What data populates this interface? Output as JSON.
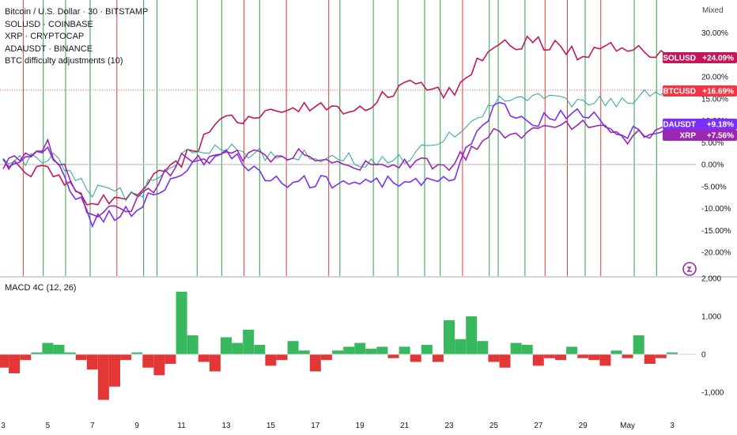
{
  "legend": {
    "main": "Bitcoin / U.S. Dollar · 30 · BITSTAMP",
    "sol": "SOLUSD · COINBASE",
    "xrp": "XRP · CRYPTOCAP",
    "ada": "ADAUSDT · BINANCE",
    "adjust": "BTC difficulty adjustments (10)"
  },
  "scale_mode": "Mixed",
  "macd_label": "MACD 4C (12, 26)",
  "colors": {
    "sol": "#c2185b",
    "btc_up": "#26a69a",
    "btc_down": "#ef5350",
    "ada": "#7b2ff7",
    "xrp": "#9c27b0",
    "macd_up": "#22b14c",
    "macd_down": "#e02020",
    "vline_green": "#2ea043",
    "vline_red": "#e53935",
    "btc_badge": "#f23645"
  },
  "chart_data": [
    {
      "type": "line",
      "title": "",
      "y_unit": "percent",
      "y_ticks": [
        "30.00%",
        "25.00%",
        "20.00%",
        "15.00%",
        "10.00%",
        "5.00%",
        "0.00%",
        "-5.00%",
        "-10.00%",
        "-15.00%",
        "-20.00%"
      ],
      "ylim": [
        -24,
        32
      ],
      "x_ticks": [
        "3",
        "5",
        "7",
        "9",
        "11",
        "13",
        "15",
        "17",
        "19",
        "21",
        "23",
        "25",
        "27",
        "29",
        "May",
        "3"
      ],
      "x": [
        0,
        2,
        4,
        6,
        8,
        10,
        12,
        14,
        16,
        18,
        20,
        22,
        24,
        26,
        28,
        30
      ],
      "series": [
        {
          "name": "SOLUSD",
          "label": "SOLUSD",
          "last": "+24.09%",
          "values": [
            0,
            -2,
            -9,
            -6,
            1,
            10,
            12,
            13,
            12,
            18,
            16,
            27,
            28,
            25,
            27,
            24
          ]
        },
        {
          "name": "BTCUSD",
          "label": "BTCUSD",
          "last": "+16.69%",
          "values": [
            0,
            2,
            -6,
            -7,
            2,
            4,
            2,
            2,
            1,
            1,
            6,
            14,
            15,
            14,
            15,
            17
          ]
        },
        {
          "name": "ADAUSDT",
          "label": "ADAUSDT",
          "last": "+9.18%",
          "values": [
            0,
            3,
            -13,
            -10,
            -2,
            3,
            -4,
            -4,
            -4,
            -4,
            -4,
            13,
            10,
            12,
            7,
            9
          ]
        },
        {
          "name": "XRP",
          "label": "XRP",
          "last": "+7.56%",
          "values": [
            0,
            5,
            -12,
            -9,
            1,
            2,
            2,
            2,
            0,
            0,
            0,
            7,
            7,
            10,
            6,
            8
          ]
        }
      ],
      "vertical_markers": [
        {
          "x": 0.9,
          "color": "red"
        },
        {
          "x": 1.8,
          "color": "green"
        },
        {
          "x": 2.8,
          "color": "green"
        },
        {
          "x": 3.9,
          "color": "green"
        },
        {
          "x": 5.1,
          "color": "red"
        },
        {
          "x": 6.3,
          "color": "green"
        },
        {
          "x": 6.9,
          "color": "green"
        },
        {
          "x": 8.7,
          "color": "green"
        },
        {
          "x": 9.8,
          "color": "green"
        },
        {
          "x": 10.8,
          "color": "red"
        },
        {
          "x": 11.5,
          "color": "green"
        },
        {
          "x": 12.7,
          "color": "red"
        },
        {
          "x": 14.6,
          "color": "red"
        },
        {
          "x": 15.1,
          "color": "green"
        },
        {
          "x": 16.6,
          "color": "green"
        },
        {
          "x": 17.7,
          "color": "green"
        },
        {
          "x": 18.9,
          "color": "green"
        },
        {
          "x": 19.6,
          "color": "green"
        },
        {
          "x": 20.6,
          "color": "red"
        },
        {
          "x": 21.8,
          "color": "green"
        },
        {
          "x": 22.2,
          "color": "green"
        },
        {
          "x": 23.4,
          "color": "green"
        },
        {
          "x": 24.3,
          "color": "red"
        },
        {
          "x": 25.3,
          "color": "red"
        },
        {
          "x": 26.1,
          "color": "green"
        },
        {
          "x": 26.8,
          "color": "red"
        },
        {
          "x": 28.3,
          "color": "green"
        },
        {
          "x": 29.3,
          "color": "green"
        }
      ],
      "grid": false
    },
    {
      "type": "bar",
      "title": "MACD 4C (12, 26)",
      "y_ticks": [
        "2,000",
        "1,000",
        "0",
        "-1,000"
      ],
      "ylim": [
        -1300,
        2000
      ],
      "x": [
        0,
        0.5,
        1,
        1.5,
        2,
        2.5,
        3,
        3.5,
        4,
        4.5,
        5,
        5.5,
        6,
        6.5,
        7,
        7.5,
        8,
        8.5,
        9,
        9.5,
        10,
        10.5,
        11,
        11.5,
        12,
        12.5,
        13,
        13.5,
        14,
        14.5,
        15,
        15.5,
        16,
        16.5,
        17,
        17.5,
        18,
        18.5,
        19,
        19.5,
        20,
        20.5,
        21,
        21.5,
        22,
        22.5,
        23,
        23.5,
        24,
        24.5,
        25,
        25.5,
        26,
        26.5,
        27,
        27.5,
        28,
        28.5,
        29,
        29.5,
        30
      ],
      "values": [
        -350,
        -500,
        -150,
        50,
        300,
        250,
        50,
        -150,
        -400,
        -1200,
        -850,
        -150,
        50,
        -350,
        -550,
        -250,
        1650,
        500,
        -200,
        -450,
        450,
        300,
        650,
        250,
        -300,
        -150,
        350,
        100,
        -450,
        -150,
        100,
        200,
        300,
        150,
        200,
        -100,
        200,
        -200,
        250,
        -200,
        900,
        400,
        1000,
        350,
        -200,
        -350,
        300,
        250,
        -300,
        -100,
        -150,
        200,
        -100,
        -150,
        -300,
        100,
        -100,
        500,
        -250,
        -100,
        50
      ]
    }
  ]
}
